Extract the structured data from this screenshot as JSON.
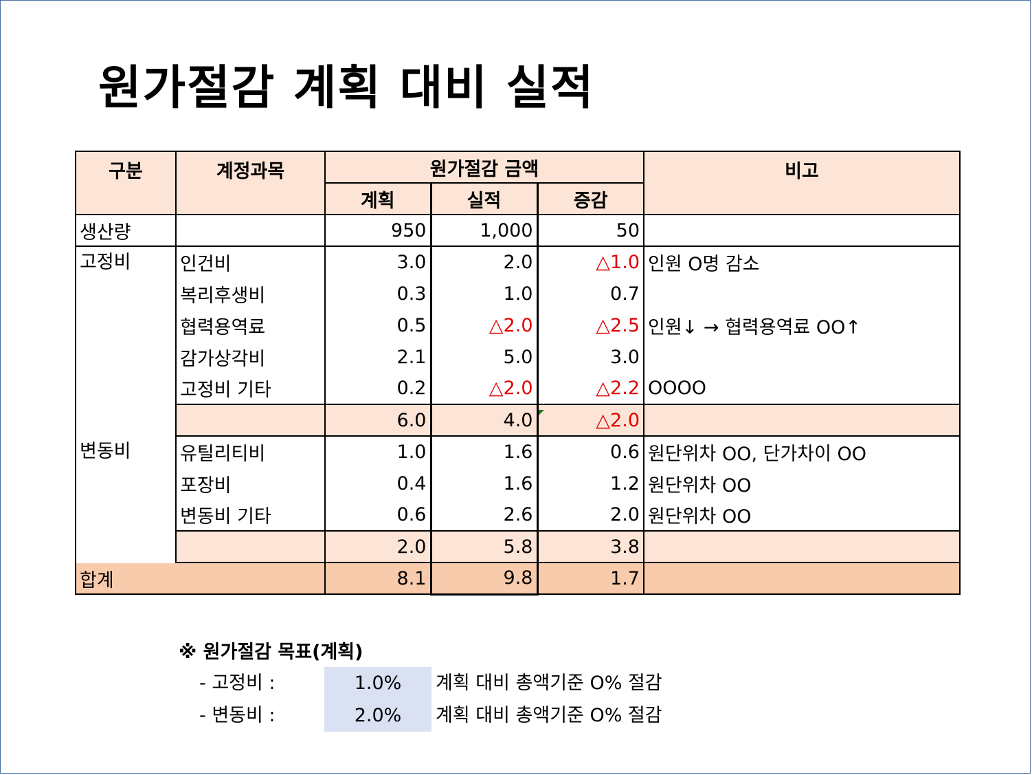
{
  "title": "원가절감 계획 대비 실적",
  "headers": {
    "category": "구분",
    "account": "계정과목",
    "amount_group": "원가절감 금액",
    "plan": "계획",
    "actual": "실적",
    "diff": "증감",
    "remark": "비고"
  },
  "production": {
    "category": "생산량",
    "plan": "950",
    "actual": "1,000",
    "diff": "50",
    "remark": ""
  },
  "fixed": {
    "category": "고정비",
    "items": [
      {
        "account": "인건비",
        "plan": "3.0",
        "actual": "2.0",
        "diff": "△1.0",
        "remark": "인원 O명 감소"
      },
      {
        "account": "복리후생비",
        "plan": "0.3",
        "actual": "1.0",
        "diff": "0.7",
        "remark": ""
      },
      {
        "account": "협력용역료",
        "plan": "0.5",
        "actual": "△2.0",
        "diff": "△2.5",
        "remark": "인원↓ → 협력용역료 OO↑"
      },
      {
        "account": "감가상각비",
        "plan": "2.1",
        "actual": "5.0",
        "diff": "3.0",
        "remark": ""
      },
      {
        "account": "고정비 기타",
        "plan": "0.2",
        "actual": "△2.0",
        "diff": "△2.2",
        "remark": "OOOO"
      }
    ],
    "subtotal": {
      "plan": "6.0",
      "actual": "4.0",
      "diff": "△2.0"
    }
  },
  "variable": {
    "category": "변동비",
    "items": [
      {
        "account": "유틸리티비",
        "plan": "1.0",
        "actual": "1.6",
        "diff": "0.6",
        "remark": "원단위차 OO, 단가차이 OO"
      },
      {
        "account": "포장비",
        "plan": "0.4",
        "actual": "1.6",
        "diff": "1.2",
        "remark": "원단위차 OO"
      },
      {
        "account": "변동비 기타",
        "plan": "0.6",
        "actual": "2.6",
        "diff": "2.0",
        "remark": "원단위차 OO"
      }
    ],
    "subtotal": {
      "plan": "2.0",
      "actual": "5.8",
      "diff": "3.8"
    }
  },
  "total": {
    "label": "합계",
    "plan": "8.1",
    "actual": "9.8",
    "diff": "1.7"
  },
  "colors": {
    "header_fill": "#fce4d6",
    "total_fill": "#f8cbad",
    "target_fill": "#d9e1f2",
    "negative": "#e00000"
  },
  "notes": {
    "title": "※ 원가절감 목표(계획)",
    "rows": [
      {
        "label": "- 고정비 :",
        "value": "1.0%",
        "desc": "계획 대비 총액기준 O% 절감"
      },
      {
        "label": "- 변동비 :",
        "value": "2.0%",
        "desc": "계획 대비 총액기준 O% 절감"
      }
    ]
  }
}
